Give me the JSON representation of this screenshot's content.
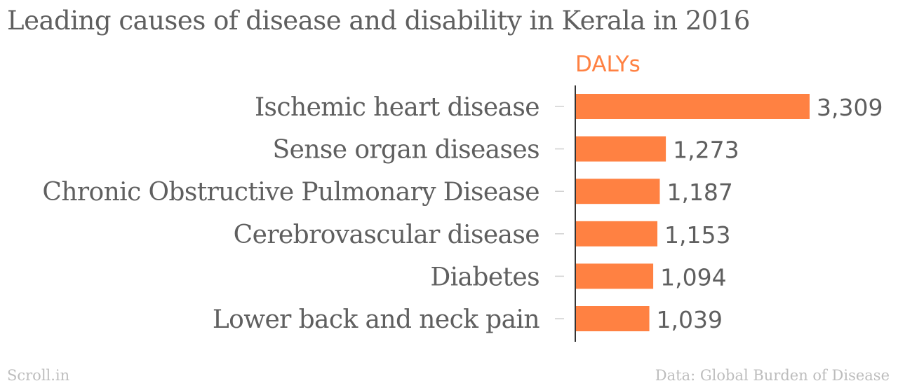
{
  "footer": {
    "source_brand": "Scroll.in",
    "source_credit": "Data: Global Burden of Disease"
  },
  "colors": {
    "bar": "#ff8142",
    "title": "#5f5f5f",
    "label": "#5f5f5f",
    "footer": "#bdbdbd",
    "series_label": "#ff8142"
  },
  "chart_data": {
    "type": "bar",
    "orientation": "horizontal",
    "title": "Leading causes of disease and disability in Kerala in 2016",
    "series_label": "DALYs",
    "categories": [
      "Ischemic heart disease",
      "Sense organ diseases",
      "Chronic Obstructive Pulmonary Disease",
      "Cerebrovascular disease",
      "Diabetes",
      "Lower back and neck pain"
    ],
    "values": [
      3309,
      1273,
      1187,
      1153,
      1094,
      1039
    ],
    "value_labels": [
      "3,309",
      "1,273",
      "1,187",
      "1,153",
      "1,094",
      "1,039"
    ],
    "xlim": [
      0,
      3309
    ],
    "grid": false,
    "legend": "none"
  }
}
